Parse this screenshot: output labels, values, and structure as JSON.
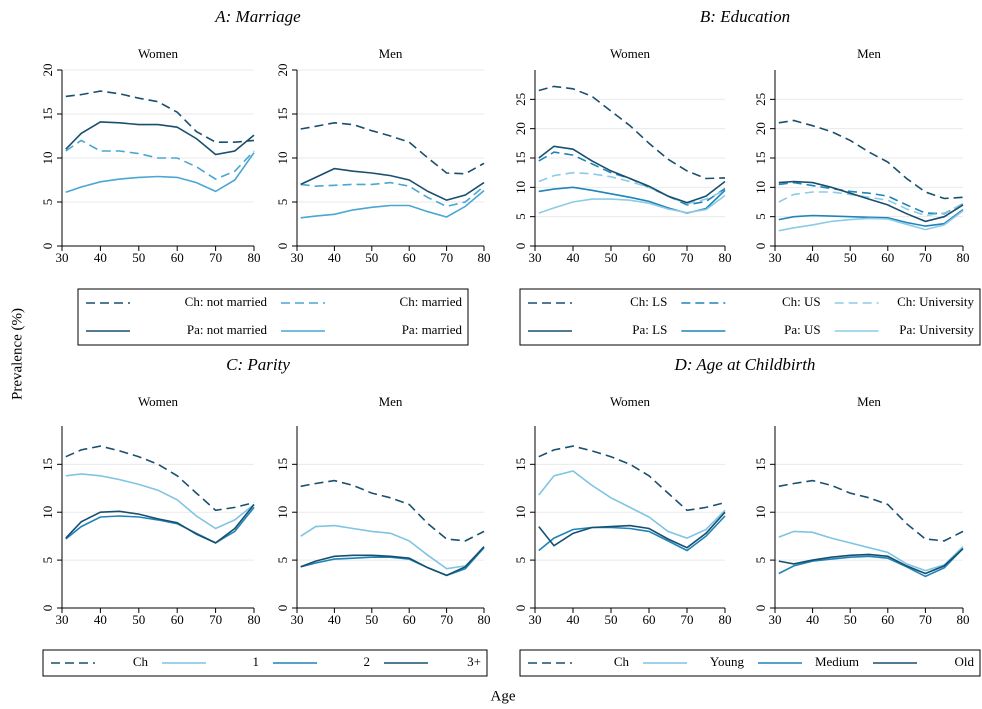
{
  "axis_labels": {
    "y_label": "Prevalence (%)",
    "x_label": "Age"
  },
  "chart_data": [
    {
      "type": "line",
      "title": "A: Marriage",
      "grid": true,
      "xlim": [
        30,
        80
      ],
      "xticks": [
        30,
        40,
        50,
        60,
        70,
        80
      ],
      "x": [
        31,
        35,
        40,
        45,
        50,
        55,
        60,
        65,
        70,
        75,
        80
      ],
      "ylim": [
        0,
        20
      ],
      "yticks": [
        0,
        5,
        10,
        15,
        20
      ],
      "series": [
        {
          "name": "Ch: not married",
          "color": "#1a4f6e",
          "dashed": true
        },
        {
          "name": "Ch: married",
          "color": "#4aa6d3",
          "dashed": true
        },
        {
          "name": "Pa: not married",
          "color": "#1a4f6e",
          "dashed": false
        },
        {
          "name": "Pa: married",
          "color": "#4aa6d3",
          "dashed": false
        }
      ],
      "panels": [
        {
          "title": "Women",
          "values": [
            [
              17,
              17.2,
              17.6,
              17.3,
              16.8,
              16.4,
              15.2,
              13,
              11.8,
              11.8,
              12
            ],
            [
              10.8,
              12,
              10.8,
              10.8,
              10.5,
              10,
              10,
              9,
              7.6,
              8.5,
              10.8
            ],
            [
              11,
              12.8,
              14.1,
              14,
              13.8,
              13.8,
              13.5,
              12.2,
              10.4,
              10.8,
              12.6
            ],
            [
              6.1,
              6.7,
              7.3,
              7.6,
              7.8,
              7.9,
              7.8,
              7.2,
              6.2,
              7.5,
              10.6
            ]
          ]
        },
        {
          "title": "Men",
          "values": [
            [
              13.3,
              13.6,
              14,
              13.8,
              13.1,
              12.5,
              11.8,
              10,
              8.3,
              8.2,
              9.4
            ],
            [
              7,
              6.8,
              6.9,
              7,
              7,
              7.2,
              6.8,
              5.5,
              4.5,
              5,
              6.8
            ],
            [
              7,
              7.8,
              8.8,
              8.5,
              8.3,
              8,
              7.5,
              6.2,
              5.2,
              5.8,
              7.2
            ],
            [
              3.2,
              3.4,
              3.6,
              4.1,
              4.4,
              4.6,
              4.6,
              3.9,
              3.3,
              4.5,
              6.3
            ]
          ]
        }
      ]
    },
    {
      "type": "line",
      "title": "B: Education",
      "grid": true,
      "xlim": [
        30,
        80
      ],
      "xticks": [
        30,
        40,
        50,
        60,
        70,
        80
      ],
      "x": [
        31,
        35,
        40,
        45,
        50,
        55,
        60,
        65,
        70,
        75,
        80
      ],
      "ylim": [
        0,
        30
      ],
      "yticks": [
        0,
        5,
        10,
        15,
        20,
        25
      ],
      "series": [
        {
          "name": "Ch: LS",
          "color": "#1a4f6e",
          "dashed": true
        },
        {
          "name": "Ch: US",
          "color": "#1f84ba",
          "dashed": true
        },
        {
          "name": "Ch: University",
          "color": "#8ccbe6",
          "dashed": true
        },
        {
          "name": "Pa: LS",
          "color": "#1a4f6e",
          "dashed": false
        },
        {
          "name": "Pa: US",
          "color": "#1f84ba",
          "dashed": false
        },
        {
          "name": "Pa: University",
          "color": "#8ccbe6",
          "dashed": false
        }
      ],
      "panels": [
        {
          "title": "Women",
          "values": [
            [
              26.5,
              27.2,
              26.8,
              25.5,
              23,
              20.5,
              17.5,
              14.8,
              12.8,
              11.5,
              11.6
            ],
            [
              14.5,
              16,
              15.5,
              14,
              12.5,
              11.5,
              10,
              8.5,
              7,
              7.6,
              9.8
            ],
            [
              11,
              12,
              12.5,
              12.3,
              11.8,
              11,
              10,
              8.5,
              7.2,
              8,
              9.5
            ],
            [
              15,
              17,
              16.5,
              14.5,
              12.8,
              11.5,
              10.2,
              8.5,
              7.4,
              8.5,
              11
            ],
            [
              9.3,
              9.7,
              10,
              9.5,
              8.9,
              8.3,
              7.6,
              6.5,
              5.6,
              6.4,
              9.5
            ],
            [
              5.6,
              6.5,
              7.5,
              8,
              8,
              7.8,
              7.3,
              6.3,
              5.7,
              6.2,
              8.6
            ]
          ]
        },
        {
          "title": "Men",
          "values": [
            [
              21,
              21.4,
              20.5,
              19.5,
              18,
              16,
              14.3,
              11.5,
              9.2,
              8.1,
              8.3
            ],
            [
              10.5,
              10.8,
              10.3,
              9.8,
              9.3,
              9,
              8.5,
              7,
              5.6,
              5.5,
              7.2
            ],
            [
              7.5,
              8.8,
              9.2,
              9.2,
              8.8,
              8.3,
              7.8,
              6.3,
              5.2,
              5.6,
              7.1
            ],
            [
              10.8,
              11,
              10.8,
              10,
              9,
              8,
              7,
              5.5,
              4.2,
              5,
              7
            ],
            [
              4.5,
              5,
              5.2,
              5.1,
              5,
              4.9,
              4.8,
              4,
              3.4,
              3.8,
              6.2
            ],
            [
              2.6,
              3.1,
              3.6,
              4.2,
              4.5,
              4.7,
              4.6,
              3.7,
              2.8,
              3.6,
              6
            ]
          ]
        }
      ]
    },
    {
      "type": "line",
      "title": "C: Parity",
      "grid": true,
      "xlim": [
        30,
        80
      ],
      "xticks": [
        30,
        40,
        50,
        60,
        70,
        80
      ],
      "x": [
        31,
        35,
        40,
        45,
        50,
        55,
        60,
        65,
        70,
        75,
        80
      ],
      "ylim": [
        0,
        19
      ],
      "yticks": [
        0,
        5,
        10,
        15
      ],
      "series": [
        {
          "name": "Ch",
          "color": "#1a4f6e",
          "dashed": true
        },
        {
          "name": "1",
          "color": "#7fc4e3",
          "dashed": false
        },
        {
          "name": "2",
          "color": "#1f84ba",
          "dashed": false
        },
        {
          "name": "3+",
          "color": "#17506f",
          "dashed": false
        }
      ],
      "panels": [
        {
          "title": "Women",
          "values": [
            [
              15.8,
              16.5,
              16.9,
              16.4,
              15.8,
              15,
              13.8,
              12,
              10.2,
              10.5,
              11
            ],
            [
              13.8,
              14,
              13.8,
              13.4,
              12.9,
              12.3,
              11.3,
              9.6,
              8.3,
              9.2,
              10.8
            ],
            [
              7.2,
              8.5,
              9.5,
              9.6,
              9.5,
              9.2,
              8.8,
              7.8,
              6.8,
              8,
              10.5
            ],
            [
              7.3,
              9,
              10,
              10.1,
              9.8,
              9.3,
              8.9,
              7.7,
              6.8,
              8.3,
              10.8
            ]
          ]
        },
        {
          "title": "Men",
          "values": [
            [
              12.7,
              13,
              13.3,
              12.8,
              12,
              11.5,
              10.8,
              8.8,
              7.2,
              7,
              8
            ],
            [
              7.5,
              8.5,
              8.6,
              8.3,
              8,
              7.8,
              7,
              5.5,
              4.1,
              4.4,
              6.3
            ],
            [
              4.3,
              4.7,
              5.1,
              5.2,
              5.3,
              5.3,
              5.1,
              4.2,
              3.4,
              4.1,
              6.3
            ],
            [
              4.3,
              4.9,
              5.4,
              5.5,
              5.5,
              5.4,
              5.2,
              4.2,
              3.4,
              4.3,
              6.4
            ]
          ]
        }
      ]
    },
    {
      "type": "line",
      "title": "D: Age at Childbirth",
      "grid": true,
      "xlim": [
        30,
        80
      ],
      "xticks": [
        30,
        40,
        50,
        60,
        70,
        80
      ],
      "x": [
        31,
        35,
        40,
        45,
        50,
        55,
        60,
        65,
        70,
        75,
        80
      ],
      "ylim": [
        0,
        19
      ],
      "yticks": [
        0,
        5,
        10,
        15
      ],
      "series": [
        {
          "name": "Ch",
          "color": "#1a4f6e",
          "dashed": true
        },
        {
          "name": "Young",
          "color": "#7fc4e3",
          "dashed": false
        },
        {
          "name": "Medium",
          "color": "#1f84ba",
          "dashed": false
        },
        {
          "name": "Old",
          "color": "#17506f",
          "dashed": false
        }
      ],
      "panels": [
        {
          "title": "Women",
          "values": [
            [
              15.8,
              16.5,
              16.9,
              16.4,
              15.8,
              15,
              13.8,
              12,
              10.2,
              10.5,
              11
            ],
            [
              11.8,
              13.8,
              14.3,
              12.8,
              11.5,
              10.5,
              9.5,
              8,
              7.3,
              8.2,
              10.2
            ],
            [
              6,
              7.3,
              8.2,
              8.4,
              8.4,
              8.3,
              8,
              7,
              6,
              7.5,
              9.6
            ],
            [
              8.5,
              6.5,
              7.8,
              8.4,
              8.5,
              8.6,
              8.3,
              7.2,
              6.3,
              7.8,
              10
            ]
          ]
        },
        {
          "title": "Men",
          "values": [
            [
              12.7,
              13,
              13.3,
              12.8,
              12,
              11.5,
              10.8,
              8.8,
              7.2,
              7,
              8
            ],
            [
              7.4,
              8,
              7.9,
              7.3,
              6.8,
              6.3,
              5.8,
              4.6,
              3.9,
              4.5,
              6.4
            ],
            [
              3.6,
              4.4,
              4.9,
              5.1,
              5.3,
              5.4,
              5.2,
              4.3,
              3.3,
              4.2,
              6.2
            ],
            [
              4.9,
              4.6,
              5,
              5.3,
              5.5,
              5.6,
              5.4,
              4.4,
              3.6,
              4.4,
              6.2
            ]
          ]
        }
      ]
    }
  ]
}
